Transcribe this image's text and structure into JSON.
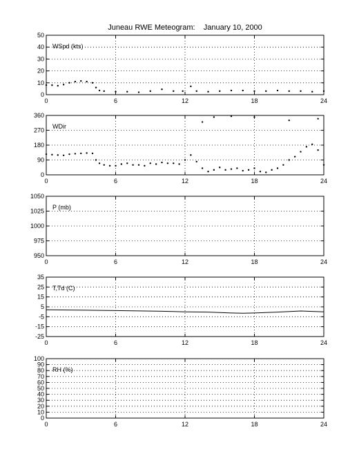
{
  "title": "Juneau RWE Meteogram:    January 10, 2000",
  "x_ticks": [
    "0",
    "6",
    "12",
    "18",
    "24"
  ],
  "chart_data": [
    {
      "type": "scatter",
      "panel_label": "WSpd (kts)",
      "xlim": [
        0,
        24
      ],
      "ylim": [
        0,
        50
      ],
      "y_ticks": [
        "0",
        "10",
        "20",
        "30",
        "40",
        "50"
      ],
      "grid": true,
      "series": [
        {
          "values": [
            [
              0,
              8
            ],
            [
              0.5,
              8
            ],
            [
              1,
              7.5
            ],
            [
              1.5,
              8.5
            ],
            [
              2,
              10
            ],
            [
              2.5,
              11
            ],
            [
              3,
              11.5
            ],
            [
              3.5,
              11
            ],
            [
              4,
              10
            ],
            [
              4.3,
              6
            ],
            [
              4.6,
              3.5
            ],
            [
              5,
              3
            ],
            [
              6,
              2.5
            ],
            [
              7,
              2.5
            ],
            [
              8,
              2
            ],
            [
              9,
              3
            ],
            [
              10,
              4.5
            ],
            [
              11,
              3
            ],
            [
              11.8,
              3
            ],
            [
              12.5,
              7
            ],
            [
              13,
              3
            ],
            [
              14,
              2.5
            ],
            [
              15,
              3
            ],
            [
              16,
              3.5
            ],
            [
              17,
              3.5
            ],
            [
              18,
              3
            ],
            [
              19,
              3
            ],
            [
              20,
              3.5
            ],
            [
              21,
              3
            ],
            [
              22,
              3
            ],
            [
              23,
              2.5
            ],
            [
              24,
              3
            ]
          ]
        }
      ]
    },
    {
      "type": "scatter",
      "panel_label": "WDir",
      "xlim": [
        0,
        24
      ],
      "ylim": [
        0,
        360
      ],
      "y_ticks": [
        "0",
        "90",
        "180",
        "270",
        "360"
      ],
      "grid": true,
      "series": [
        {
          "values": [
            [
              0,
              125
            ],
            [
              0.5,
              122
            ],
            [
              1,
              120
            ],
            [
              1.5,
              118
            ],
            [
              2,
              125
            ],
            [
              2.5,
              128
            ],
            [
              3,
              130
            ],
            [
              3.5,
              132
            ],
            [
              4,
              130
            ],
            [
              4.3,
              90
            ],
            [
              4.6,
              70
            ],
            [
              5,
              60
            ],
            [
              5.5,
              55
            ],
            [
              6,
              55
            ],
            [
              6.5,
              65
            ],
            [
              7,
              70
            ],
            [
              7.5,
              60
            ],
            [
              8,
              60
            ],
            [
              8.5,
              55
            ],
            [
              9,
              70
            ],
            [
              9.5,
              65
            ],
            [
              10,
              75
            ],
            [
              10.5,
              70
            ],
            [
              11,
              70
            ],
            [
              11.5,
              65
            ],
            [
              12,
              90
            ],
            [
              12.5,
              120
            ],
            [
              13,
              80
            ],
            [
              13.5,
              40
            ],
            [
              14,
              20
            ],
            [
              14.5,
              30
            ],
            [
              15,
              45
            ],
            [
              15.5,
              30
            ],
            [
              16,
              35
            ],
            [
              16.5,
              40
            ],
            [
              17,
              25
            ],
            [
              17.5,
              30
            ],
            [
              18,
              40
            ],
            [
              18.5,
              20
            ],
            [
              19,
              15
            ],
            [
              19.5,
              30
            ],
            [
              20,
              40
            ],
            [
              20.5,
              60
            ],
            [
              21,
              90
            ],
            [
              21.5,
              110
            ],
            [
              22,
              140
            ],
            [
              22.5,
              170
            ],
            [
              23,
              185
            ],
            [
              23.5,
              150
            ],
            [
              24,
              60
            ],
            [
              13.5,
              320
            ],
            [
              14.5,
              350
            ],
            [
              16,
              355
            ],
            [
              18,
              350
            ],
            [
              21,
              330
            ],
            [
              23.5,
              340
            ]
          ]
        }
      ]
    },
    {
      "type": "line",
      "panel_label": "P (mb)",
      "xlim": [
        0,
        24
      ],
      "ylim": [
        950,
        1050
      ],
      "y_ticks": [
        "950",
        "975",
        "1000",
        "1025",
        "1050"
      ],
      "grid": true,
      "series": []
    },
    {
      "type": "line",
      "panel_label": "T,Td (C)",
      "xlim": [
        0,
        24
      ],
      "ylim": [
        -25,
        35
      ],
      "y_ticks": [
        "-25",
        "-15",
        "-5",
        "5",
        "15",
        "25",
        "35"
      ],
      "grid": true,
      "series": [
        {
          "values": [
            [
              0,
              2
            ],
            [
              2,
              1.8
            ],
            [
              4,
              1.5
            ],
            [
              6,
              1.2
            ],
            [
              8,
              0.9
            ],
            [
              10,
              0.5
            ],
            [
              12,
              0
            ],
            [
              14,
              -0.3
            ],
            [
              16,
              -1.2
            ],
            [
              17,
              -1.5
            ],
            [
              18,
              -1.2
            ],
            [
              20,
              -0.3
            ],
            [
              22,
              0.8
            ],
            [
              24,
              0
            ]
          ]
        }
      ]
    },
    {
      "type": "line",
      "panel_label": "RH (%)",
      "xlim": [
        0,
        24
      ],
      "ylim": [
        0,
        100
      ],
      "y_ticks": [
        "0",
        "10",
        "20",
        "30",
        "40",
        "50",
        "60",
        "70",
        "80",
        "90",
        "100"
      ],
      "grid": true,
      "series": []
    }
  ]
}
